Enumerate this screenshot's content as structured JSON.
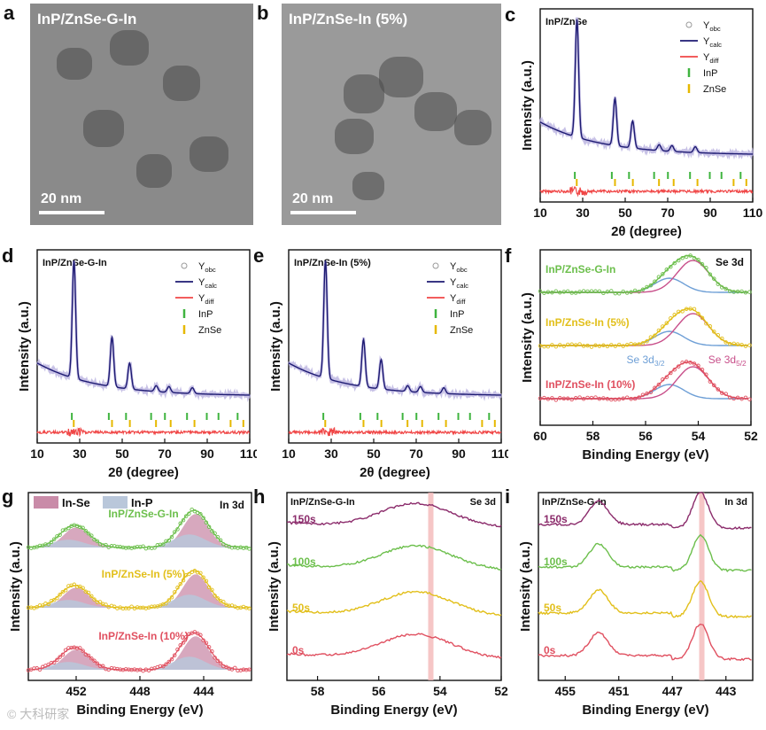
{
  "panels": {
    "a": {
      "letter": "a",
      "caption": "InP/ZnSe-G-In",
      "scale": "20 nm"
    },
    "b": {
      "letter": "b",
      "caption": "InP/ZnSe-In (5%)",
      "scale": "20 nm"
    }
  },
  "watermark": "© 大科研家",
  "colors": {
    "obs": "#b9b2e0",
    "calc": "#1d1a72",
    "diff": "#f04646",
    "inp": "#3fb43f",
    "znse": "#e6b800",
    "green": "#6cbf4c",
    "yellow": "#e2bf1a",
    "red": "#e05060",
    "purple": "#8b2b6b",
    "pink": "#c84f8a",
    "blue": "#6e9fd6"
  },
  "chart_data": [
    {
      "id": "c",
      "letter": "c",
      "type": "line",
      "title": "InP/ZnSe",
      "xlabel": "2θ (degree)",
      "ylabel": "Intensity (a.u.)",
      "xlim": [
        10,
        110
      ],
      "xticks": [
        10,
        30,
        50,
        70,
        90,
        110
      ],
      "legend": [
        {
          "label": "Y",
          "sub": "obc"
        },
        {
          "label": "Y",
          "sub": "calc"
        },
        {
          "label": "Y",
          "sub": "diff"
        },
        {
          "label": "InP",
          "sub": ""
        },
        {
          "label": "ZnSe",
          "sub": ""
        }
      ],
      "peaks": [
        {
          "x": 27.3,
          "h": 1.0
        },
        {
          "x": 45.2,
          "h": 0.4
        },
        {
          "x": 53.5,
          "h": 0.23
        },
        {
          "x": 66,
          "h": 0.05
        },
        {
          "x": 72,
          "h": 0.05
        },
        {
          "x": 83,
          "h": 0.05
        }
      ],
      "inp_ticks": [
        26.3,
        43.7,
        51.8,
        63.6,
        70.1,
        80.5,
        89.8,
        95.3,
        104.3
      ],
      "znse_ticks": [
        27.2,
        45.2,
        53.6,
        65.9,
        72.8,
        84.0,
        101.0,
        107.0
      ]
    },
    {
      "id": "d",
      "letter": "d",
      "type": "line",
      "title": "InP/ZnSe-G-In",
      "xlabel": "2θ (degree)",
      "ylabel": "Intensity (a.u.)",
      "xlim": [
        10,
        110
      ],
      "xticks": [
        10,
        30,
        50,
        70,
        90,
        110
      ],
      "legend": [
        {
          "label": "Y",
          "sub": "obc"
        },
        {
          "label": "Y",
          "sub": "calc"
        },
        {
          "label": "Y",
          "sub": "diff"
        },
        {
          "label": "InP",
          "sub": ""
        },
        {
          "label": "ZnSe",
          "sub": ""
        }
      ],
      "peaks": [
        {
          "x": 27.3,
          "h": 1.0
        },
        {
          "x": 45.2,
          "h": 0.42
        },
        {
          "x": 53.5,
          "h": 0.22
        },
        {
          "x": 66,
          "h": 0.05
        },
        {
          "x": 72,
          "h": 0.05
        },
        {
          "x": 83,
          "h": 0.05
        }
      ],
      "inp_ticks": [
        26.3,
        43.7,
        51.8,
        63.6,
        70.1,
        80.5,
        89.8,
        95.3,
        104.3
      ],
      "znse_ticks": [
        27.2,
        45.2,
        53.6,
        65.9,
        72.8,
        84.0,
        101.0,
        107.0
      ]
    },
    {
      "id": "e",
      "letter": "e",
      "type": "line",
      "title": "InP/ZnSe-In (5%)",
      "xlabel": "2θ (degree)",
      "ylabel": "Intensity (a.u.)",
      "xlim": [
        10,
        110
      ],
      "xticks": [
        10,
        30,
        50,
        70,
        90,
        110
      ],
      "legend": [
        {
          "label": "Y",
          "sub": "obc"
        },
        {
          "label": "Y",
          "sub": "calc"
        },
        {
          "label": "Y",
          "sub": "diff"
        },
        {
          "label": "InP",
          "sub": ""
        },
        {
          "label": "ZnSe",
          "sub": ""
        }
      ],
      "peaks": [
        {
          "x": 27.3,
          "h": 1.0
        },
        {
          "x": 45.2,
          "h": 0.4
        },
        {
          "x": 53.5,
          "h": 0.25
        },
        {
          "x": 66,
          "h": 0.05
        },
        {
          "x": 72,
          "h": 0.05
        },
        {
          "x": 83,
          "h": 0.05
        }
      ],
      "inp_ticks": [
        26.3,
        43.7,
        51.8,
        63.6,
        70.1,
        80.5,
        89.8,
        95.3,
        104.3
      ],
      "znse_ticks": [
        27.2,
        45.2,
        53.6,
        65.9,
        72.8,
        84.0,
        101.0,
        107.0
      ]
    },
    {
      "id": "f",
      "letter": "f",
      "type": "line",
      "title": "Se 3d",
      "xlabel": "Binding Energy (eV)",
      "ylabel": "Intensity (a.u.)",
      "xlim": [
        60,
        52
      ],
      "xticks": [
        60,
        58,
        56,
        54,
        52
      ],
      "series": [
        {
          "name": "InP/ZnSe-G-In",
          "color": "green"
        },
        {
          "name": "InP/ZnSe-In (5%)",
          "color": "yellow"
        },
        {
          "name": "InP/ZnSe-In (10%)",
          "color": "red"
        }
      ],
      "components": [
        {
          "label": "Se 3d",
          "sub": "3/2",
          "center": 55.1
        },
        {
          "label": "Se 3d",
          "sub": "5/2",
          "center": 54.2
        }
      ]
    },
    {
      "id": "g",
      "letter": "g",
      "type": "line",
      "title": "In 3d",
      "xlabel": "Binding Energy (eV)",
      "ylabel": "Intensity (a.u.)",
      "xlim": [
        455,
        441
      ],
      "xticks": [
        452,
        448,
        444
      ],
      "legend": [
        {
          "label": "In-Se"
        },
        {
          "label": "In-P"
        }
      ],
      "series": [
        {
          "name": "InP/ZnSe-G-In",
          "color": "green"
        },
        {
          "name": "InP/ZnSe-In (5%)",
          "color": "yellow"
        },
        {
          "name": "InP/ZnSe-In (10%)",
          "color": "red"
        }
      ],
      "peaks": [
        452.1,
        444.6
      ]
    },
    {
      "id": "h",
      "letter": "h",
      "type": "line",
      "title": "InP/ZnSe-G-In",
      "corner": "Se 3d",
      "xlabel": "Binding Energy (eV)",
      "ylabel": "Intensity (a.u.)",
      "xlim": [
        59,
        52
      ],
      "xticks": [
        58,
        56,
        54,
        52
      ],
      "series": [
        {
          "name": "150s",
          "color": "purple"
        },
        {
          "name": "100s",
          "color": "green"
        },
        {
          "name": "50s",
          "color": "yellow"
        },
        {
          "name": "0s",
          "color": "red"
        }
      ],
      "marker": 54.3
    },
    {
      "id": "i",
      "letter": "i",
      "type": "line",
      "title": "InP/ZnSe-G-In",
      "corner": "In 3d",
      "xlabel": "Binding Energy (eV)",
      "ylabel": "Intensity (a.u.)",
      "xlim": [
        457,
        441
      ],
      "xticks": [
        455,
        451,
        447,
        443
      ],
      "series": [
        {
          "name": "150s",
          "color": "purple"
        },
        {
          "name": "100s",
          "color": "green"
        },
        {
          "name": "50s",
          "color": "yellow"
        },
        {
          "name": "0s",
          "color": "red"
        }
      ],
      "marker": 444.8
    }
  ]
}
